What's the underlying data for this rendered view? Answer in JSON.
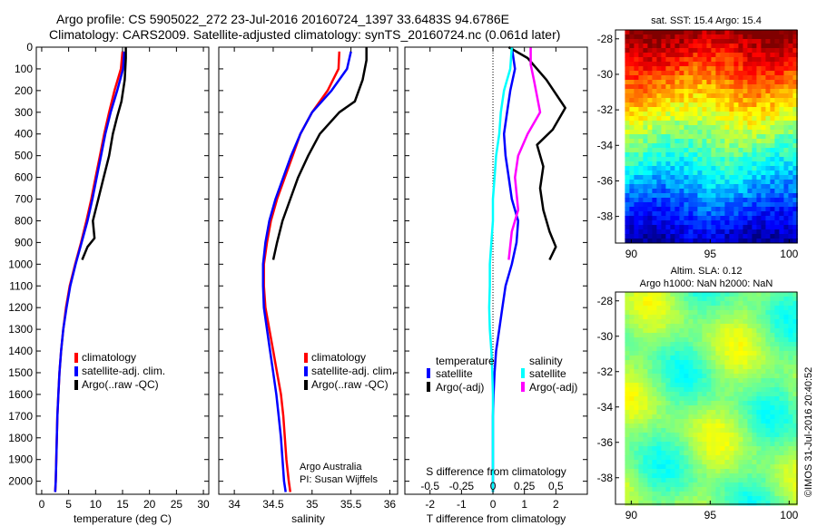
{
  "header": {
    "title_line1": "Argo profile: CS 5905022_272 23-Jul-2016 20160724_1397 33.6483S 94.6786E",
    "title_line2": "Climatology: CARS2009. Satellite-adjusted climatology: synTS_20160724.nc (0.061d later)"
  },
  "colors": {
    "climatology": "#ff0000",
    "satellite": "#0000ff",
    "argo": "#000000",
    "satellite_s": "#00ffff",
    "argo_s": "#ff00ff"
  },
  "chart_data": [
    {
      "type": "line",
      "title": "",
      "xlabel": "temperature (deg C)",
      "ylabel": "",
      "xlim": [
        -1,
        31
      ],
      "ylim": [
        2060,
        0
      ],
      "xticks": [
        0,
        5,
        10,
        15,
        20,
        25,
        30
      ],
      "yticks": [
        0,
        100,
        200,
        300,
        400,
        500,
        600,
        700,
        800,
        900,
        1000,
        1100,
        1200,
        1300,
        1400,
        1500,
        1600,
        1700,
        1800,
        1900,
        2000
      ],
      "legend": [
        "climatology",
        "satellite-adj. clim.",
        "Argo(..raw -QC)"
      ],
      "legend_placement": "lower-right",
      "series": [
        {
          "name": "climatology",
          "x": [
            15.0,
            14.7,
            13.5,
            12.5,
            11.6,
            10.8,
            10.0,
            9.2,
            8.3,
            7.3,
            6.2,
            5.2,
            4.5,
            4.0,
            3.6,
            3.3,
            3.1,
            2.9,
            2.8,
            2.7,
            2.6,
            2.5
          ],
          "y": [
            20,
            100,
            200,
            300,
            400,
            500,
            600,
            700,
            800,
            900,
            1000,
            1100,
            1200,
            1300,
            1400,
            1500,
            1600,
            1700,
            1800,
            1900,
            2000,
            2050
          ]
        },
        {
          "name": "satellite-adj. clim.",
          "x": [
            15.3,
            15.1,
            14.0,
            12.8,
            11.8,
            11.0,
            10.2,
            9.4,
            8.5,
            7.4,
            6.3,
            5.3,
            4.6,
            4.0,
            3.6,
            3.3,
            3.1,
            2.9,
            2.8,
            2.7,
            2.6,
            2.5
          ],
          "y": [
            20,
            100,
            200,
            300,
            400,
            500,
            600,
            700,
            800,
            900,
            1000,
            1100,
            1200,
            1300,
            1400,
            1500,
            1600,
            1700,
            1800,
            1900,
            2000,
            2050
          ]
        },
        {
          "name": "Argo(..raw -QC)",
          "x": [
            15.6,
            15.6,
            15.4,
            14.8,
            14.0,
            13.2,
            12.5,
            11.5,
            10.5,
            9.5,
            9.8,
            8.5,
            7.5
          ],
          "y": [
            0,
            50,
            150,
            250,
            320,
            400,
            500,
            600,
            700,
            800,
            880,
            920,
            980
          ]
        }
      ]
    },
    {
      "type": "line",
      "title": "",
      "xlabel": "salinity",
      "ylabel": "",
      "xlim": [
        33.8,
        36.1
      ],
      "ylim": [
        2060,
        0
      ],
      "xticks": [
        34,
        34.5,
        35,
        35.5,
        36
      ],
      "legend": [
        "climatology",
        "satellite-adj. clim.",
        "Argo(..raw -QC)"
      ],
      "legend_placement": "lower-right",
      "series": [
        {
          "name": "climatology",
          "x": [
            35.35,
            35.34,
            35.2,
            35.0,
            34.85,
            34.75,
            34.65,
            34.55,
            34.47,
            34.42,
            34.38,
            34.38,
            34.4,
            34.45,
            34.5,
            34.55,
            34.6,
            34.63,
            34.65,
            34.67,
            34.7,
            34.72
          ],
          "y": [
            20,
            100,
            200,
            300,
            400,
            500,
            600,
            700,
            800,
            900,
            1000,
            1100,
            1200,
            1300,
            1400,
            1500,
            1600,
            1700,
            1800,
            1900,
            2000,
            2050
          ]
        },
        {
          "name": "satellite-adj. clim.",
          "x": [
            35.5,
            35.45,
            35.25,
            35.0,
            34.85,
            34.73,
            34.63,
            34.53,
            34.45,
            34.4,
            34.37,
            34.37,
            34.38,
            34.42,
            34.46,
            34.5,
            34.54,
            34.57,
            34.6,
            34.62,
            34.64,
            34.66
          ],
          "y": [
            20,
            100,
            200,
            300,
            400,
            500,
            600,
            700,
            800,
            900,
            1000,
            1100,
            1200,
            1300,
            1400,
            1500,
            1600,
            1700,
            1800,
            1900,
            2000,
            2050
          ]
        },
        {
          "name": "Argo(..raw -QC)",
          "x": [
            35.7,
            35.7,
            35.65,
            35.55,
            35.35,
            35.1,
            34.95,
            34.82,
            34.72,
            34.62,
            34.55,
            34.5
          ],
          "y": [
            0,
            60,
            150,
            250,
            300,
            400,
            500,
            600,
            700,
            800,
            900,
            980
          ]
        }
      ]
    },
    {
      "type": "line",
      "title": "",
      "xlabel": "T difference from climatology",
      "xlabel_top": "S difference from climatology",
      "ylabel": "",
      "xlim": [
        -2.8,
        3.0
      ],
      "ylim": [
        2060,
        0
      ],
      "xticks": [
        -2,
        -1,
        0,
        1,
        2
      ],
      "xticks_s": [
        -0.5,
        -0.25,
        0,
        0.25,
        0.5
      ],
      "legend": {
        "temperature": [
          "satellite",
          "Argo(-adj)"
        ],
        "salinity": [
          "satellite",
          "Argo(-adj)"
        ]
      },
      "legend_headers": [
        "temperature",
        "salinity"
      ],
      "legend_placement": "lower-right",
      "series": [
        {
          "name": "temperature satellite",
          "x": [
            0.6,
            0.7,
            0.55,
            0.45,
            0.35,
            0.4,
            0.5,
            0.6,
            0.8,
            0.75,
            0.6,
            0.4,
            0.3,
            0.2,
            0.1,
            0.05,
            0.02,
            0.0,
            0.0,
            0.0,
            0.0,
            0.0
          ],
          "y": [
            0,
            100,
            200,
            300,
            400,
            500,
            600,
            700,
            800,
            900,
            1000,
            1100,
            1200,
            1300,
            1400,
            1500,
            1600,
            1700,
            1800,
            1900,
            2000,
            2050
          ]
        },
        {
          "name": "temperature Argo(-adj)",
          "x": [
            0.5,
            1.1,
            1.7,
            2.3,
            1.9,
            1.4,
            1.6,
            1.5,
            1.6,
            1.8,
            2.0,
            1.8
          ],
          "y": [
            0,
            50,
            150,
            280,
            380,
            450,
            550,
            650,
            750,
            850,
            920,
            980
          ]
        },
        {
          "name": "salinity satellite",
          "x": [
            0.6,
            0.55,
            0.35,
            0.25,
            0.2,
            0.1,
            0.05,
            0.0,
            0.0,
            -0.05,
            -0.1,
            -0.1,
            -0.12,
            -0.1,
            -0.05,
            -0.02,
            0.0,
            0.0,
            0.0,
            0.0,
            0.0,
            0.0
          ],
          "y": [
            0,
            100,
            200,
            300,
            400,
            500,
            600,
            700,
            800,
            900,
            1000,
            1100,
            1200,
            1300,
            1400,
            1500,
            1600,
            1700,
            1800,
            1900,
            2000,
            2050
          ]
        },
        {
          "name": "salinity Argo(-adj)",
          "x": [
            1.2,
            1.2,
            1.3,
            1.5,
            1.1,
            0.8,
            0.7,
            0.8,
            0.6,
            0.5
          ],
          "y": [
            0,
            80,
            150,
            300,
            400,
            500,
            600,
            750,
            850,
            980
          ]
        }
      ]
    },
    {
      "type": "heatmap",
      "title": "sat. SST: 15.4 Argo: 15.4",
      "xlim": [
        89,
        100.5
      ],
      "ylim": [
        -39.5,
        -27.5
      ],
      "xticks": [
        90,
        95,
        100
      ],
      "yticks": [
        -28,
        -30,
        -32,
        -34,
        -36,
        -38
      ],
      "colormap": "jet",
      "field": "sea surface temperature"
    },
    {
      "type": "heatmap",
      "title": "Altim. SLA: 0.12",
      "subtitle": "Argo h1000: NaN h2000: NaN",
      "xlim": [
        89,
        100.5
      ],
      "ylim": [
        -39.5,
        -27.5
      ],
      "xticks": [
        90,
        95,
        100
      ],
      "yticks": [
        -28,
        -30,
        -32,
        -34,
        -36,
        -38
      ],
      "colormap": "jet",
      "field": "sea level anomaly"
    }
  ],
  "annotations": {
    "credit_line1": "Argo Australia",
    "credit_line2": "PI: Susan Wijffels",
    "imos_stamp": "©IMOS 31-Jul-2016 20:40:52"
  }
}
